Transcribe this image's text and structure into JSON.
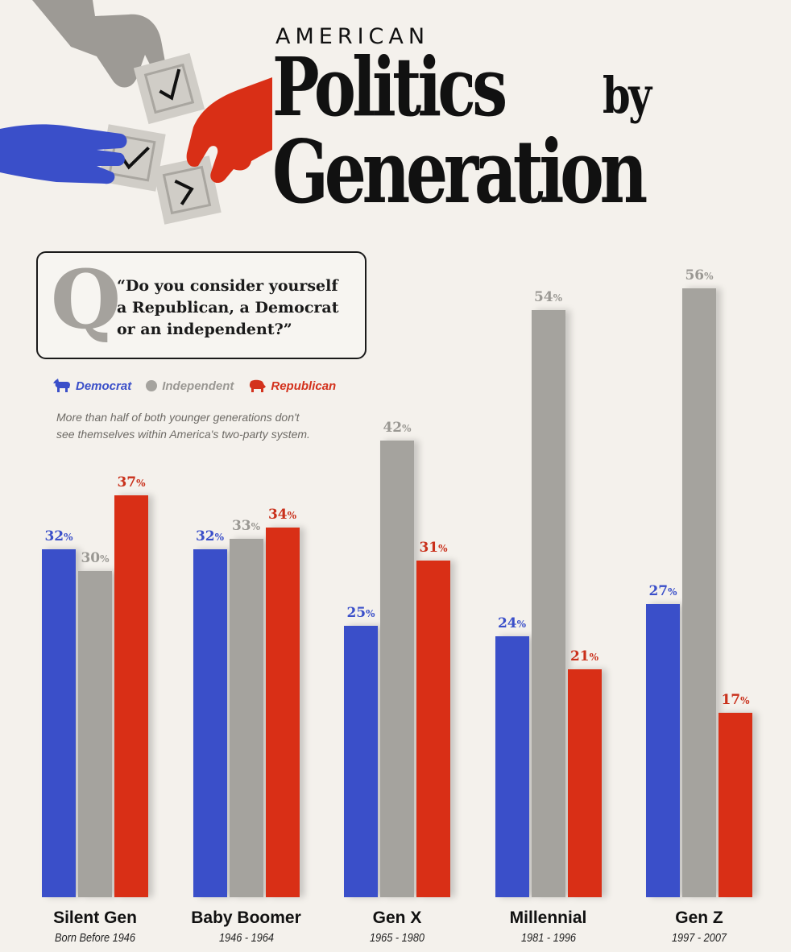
{
  "header": {
    "kicker": "AMERICAN",
    "title_line1": "Politics",
    "title_by": "by",
    "title_line2": "Generation"
  },
  "question": {
    "mark": "Q",
    "line1": "“Do you consider yourself",
    "line2": "a Republican, a Democrat",
    "line3": "or an independent?”"
  },
  "legend": {
    "democrat": "Democrat",
    "independent": "Independent",
    "republican": "Republican"
  },
  "note": {
    "line1": "More than half of both younger generations don't",
    "line2": "see themselves within America's two-party system."
  },
  "colors": {
    "democrat": "#3a4fc9",
    "independent": "#a5a39e",
    "republican": "#d92f16",
    "background": "#f4f1ec"
  },
  "chart_data": {
    "type": "bar",
    "title": "American Politics by Generation",
    "unit": "%",
    "categories": [
      "Silent Gen",
      "Baby Boomer",
      "Gen X",
      "Millennial",
      "Gen Z"
    ],
    "category_years": [
      "Born Before 1946",
      "1946 - 1964",
      "1965 - 1980",
      "1981 - 1996",
      "1997 - 2007"
    ],
    "series": [
      {
        "name": "Democrat",
        "key": "democrat",
        "values": [
          32,
          32,
          25,
          24,
          27
        ]
      },
      {
        "name": "Independent",
        "key": "independent",
        "values": [
          30,
          33,
          42,
          54,
          56
        ]
      },
      {
        "name": "Republican",
        "key": "republican",
        "values": [
          37,
          34,
          31,
          21,
          17
        ]
      }
    ],
    "ylim": [
      0,
      56
    ],
    "grid": false,
    "legend_position": "top-left"
  }
}
